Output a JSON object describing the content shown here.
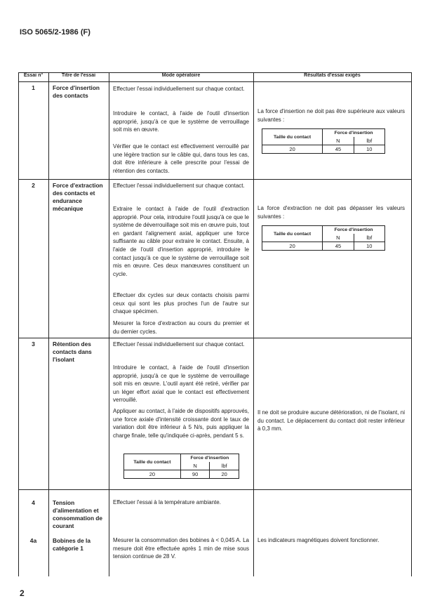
{
  "header": "ISO 5065/2-1986 (F)",
  "page_number": "2",
  "columns": [
    "Essai n°",
    "Titre de l'essai",
    "Mode opératoire",
    "Résultats d'essai exigés"
  ],
  "rows": [
    {
      "num": "1",
      "title": "Force d'insertion des contacts",
      "mode": [
        "Effectuer l'essai individuellement sur chaque contact.",
        "Introduire le contact, à l'aide de l'outil d'insertion approprié, jusqu'à ce que le système de verrouillage soit mis en œuvre.",
        "Vérifier que le contact est effectivement verrouillé par une légère traction sur le câble qui, dans tous les cas, doit être inférieure à celle prescrite pour l'essai de rétention des contacts."
      ],
      "result": "La force d'insertion ne doit pas être supérieure aux valeurs suivantes :",
      "table": {
        "col1": "Taille du contact",
        "col2": "Force d'insertion",
        "unit_n": "N",
        "unit_lbf": "lbf",
        "size": "20",
        "n": "45",
        "lbf": "10"
      }
    },
    {
      "num": "2",
      "title": "Force d'extraction des contacts et endurance mécanique",
      "mode": [
        "Effectuer l'essai individuellement sur chaque contact.",
        "Extraire le contact à l'aide de l'outil d'extraction approprié. Pour cela, introduire l'outil jusqu'à ce que le système de déverrouillage soit mis en œuvre puis, tout en gardant l'alignement axial, appliquer une force suffisante au câble pour extraire le contact. Ensuite, à l'aide de l'outil d'insertion approprié, introduire le contact jusqu'à ce que le système de verrouillage soit mis en œuvre. Ces deux manœuvres constituent un cycle.",
        "Effectuer dix cycles sur deux contacts choisis parmi ceux qui sont les plus proches l'un de l'autre sur chaque spécimen.",
        "Mesurer la force d'extraction au cours du premier et du dernier cycles."
      ],
      "result": "La force d'extraction ne doit pas dépasser les valeurs suivantes :",
      "table": {
        "col1": "Taille du contact",
        "col2": "Force d'insertion",
        "unit_n": "N",
        "unit_lbf": "lbf",
        "size": "20",
        "n": "45",
        "lbf": "10"
      }
    },
    {
      "num": "3",
      "title": "Rétention des contacts dans l'isolant",
      "mode": [
        "Effectuer l'essai individuellement sur chaque contact.",
        "Introduire le contact, à l'aide de l'outil d'insertion approprié, jusqu'à ce que le système de verrouillage soit mis en œuvre. L'outil ayant été retiré, vérifier par un léger effort axial que le contact est effectivement verrouillé.",
        "Appliquer au contact, à l'aide de dispositifs approuvés, une force axiale d'intensité croissante dont le taux de variation doit être inférieur à 5 N/s, puis appliquer la charge finale, telle qu'indiquée ci-après, pendant 5 s."
      ],
      "result": "Il ne doit se produire aucune détérioration, ni de l'isolant, ni du contact. Le déplacement du contact doit rester inférieur à 0,3 mm.",
      "table": {
        "col1": "Taille du contact",
        "col2": "Force d'insertion",
        "unit_n": "N",
        "unit_lbf": "lbf",
        "size": "20",
        "n": "90",
        "lbf": "20"
      }
    },
    {
      "num": "4",
      "title": "Tension d'alimentation et consommation de courant",
      "mode": [
        "Effectuer l'essai à la température ambiante."
      ]
    },
    {
      "num": "4a",
      "title": "Bobines de la catégorie 1",
      "mode": [
        "Mesurer la consommation des bobines à < 0,045 A. La mesure doit être effectuée après 1 min de mise sous tension continue de 28 V."
      ],
      "result": "Les indicateurs magnétiques doivent fonctionner."
    }
  ]
}
